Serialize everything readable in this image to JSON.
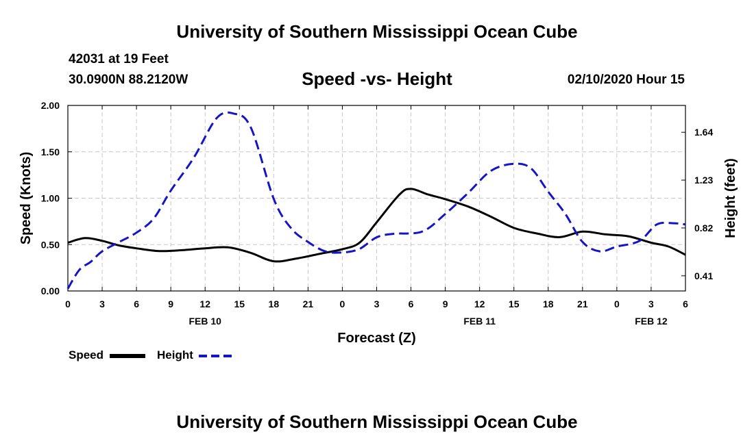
{
  "header": {
    "title": "University of Southern Mississippi Ocean Cube",
    "station": "42031 at 19 Feet",
    "coords": "30.0900N 88.2120W",
    "datetime": "02/10/2020 Hour 15"
  },
  "footer": {
    "title": "University of Southern Mississippi Ocean Cube"
  },
  "legend": {
    "speed_label": "Speed",
    "height_label": "Height"
  },
  "colors": {
    "speed": "#000000",
    "height": "#1414c8",
    "grid": "#c8c8c8"
  },
  "chart_data": {
    "type": "line",
    "title": "Speed -vs- Height",
    "xlabel": "Forecast (Z)",
    "ylabel_left": "Speed (Knots)",
    "ylabel_right": "Height (feet)",
    "x_unit": "hours since 2020-02-10 00Z",
    "xlim": [
      0,
      54
    ],
    "ylim_left": [
      0,
      2.0
    ],
    "ylim_right": [
      0.28,
      1.87
    ],
    "x_tick_labels": [
      "0",
      "3",
      "6",
      "9",
      "12",
      "15",
      "18",
      "21",
      "0",
      "3",
      "6",
      "9",
      "12",
      "15",
      "18",
      "21",
      "0",
      "3",
      "6"
    ],
    "left_ticks": [
      "0.00",
      "0.50",
      "1.00",
      "1.50",
      "2.00"
    ],
    "right_ticks": [
      "0.41",
      "0.82",
      "1.23",
      "1.64"
    ],
    "date_labels": [
      {
        "label": "FEB 10",
        "x": 12
      },
      {
        "label": "FEB 11",
        "x": 36
      },
      {
        "label": "FEB 12",
        "x": 51
      }
    ],
    "grid": true,
    "series": [
      {
        "name": "Speed",
        "axis": "left",
        "style": "solid",
        "x": [
          0,
          1.5,
          3,
          4.5,
          6,
          8,
          10,
          12,
          14,
          16,
          18,
          20,
          22,
          24,
          25.5,
          27,
          29,
          30,
          31.5,
          33,
          35,
          37,
          39,
          41,
          43,
          45,
          47,
          49,
          51,
          52.5,
          54
        ],
        "values": [
          0.52,
          0.57,
          0.54,
          0.49,
          0.46,
          0.43,
          0.44,
          0.46,
          0.47,
          0.41,
          0.32,
          0.35,
          0.4,
          0.45,
          0.52,
          0.74,
          1.04,
          1.1,
          1.04,
          0.99,
          0.91,
          0.8,
          0.68,
          0.62,
          0.58,
          0.64,
          0.61,
          0.59,
          0.52,
          0.48,
          0.39
        ]
      },
      {
        "name": "Height",
        "axis": "right",
        "style": "dashed",
        "x": [
          0,
          1,
          2,
          3,
          4.5,
          6,
          7.5,
          9,
          11,
          13,
          14.5,
          16,
          18,
          19.5,
          21,
          22.5,
          24,
          25.5,
          27,
          28.5,
          31,
          33,
          35,
          37,
          39,
          40.5,
          42,
          43.5,
          45,
          46.5,
          48,
          50,
          51.5,
          53,
          54
        ],
        "values": [
          0.3,
          0.46,
          0.53,
          0.62,
          0.7,
          0.78,
          0.9,
          1.14,
          1.42,
          1.76,
          1.8,
          1.68,
          1.07,
          0.82,
          0.7,
          0.62,
          0.61,
          0.64,
          0.74,
          0.77,
          0.79,
          0.94,
          1.12,
          1.31,
          1.37,
          1.33,
          1.13,
          0.94,
          0.7,
          0.62,
          0.66,
          0.71,
          0.85,
          0.86,
          0.85
        ]
      }
    ]
  }
}
